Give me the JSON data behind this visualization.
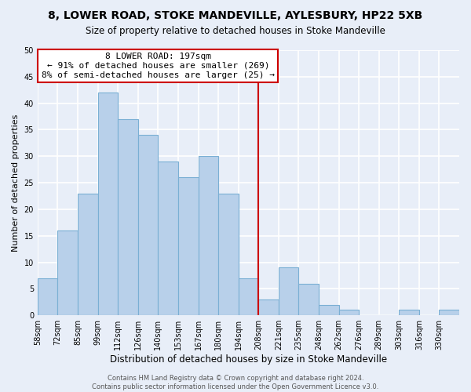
{
  "title": "8, LOWER ROAD, STOKE MANDEVILLE, AYLESBURY, HP22 5XB",
  "subtitle": "Size of property relative to detached houses in Stoke Mandeville",
  "xlabel": "Distribution of detached houses by size in Stoke Mandeville",
  "ylabel": "Number of detached properties",
  "footer_line1": "Contains HM Land Registry data © Crown copyright and database right 2024.",
  "footer_line2": "Contains public sector information licensed under the Open Government Licence v3.0.",
  "bin_labels": [
    "58sqm",
    "72sqm",
    "85sqm",
    "99sqm",
    "112sqm",
    "126sqm",
    "140sqm",
    "153sqm",
    "167sqm",
    "180sqm",
    "194sqm",
    "208sqm",
    "221sqm",
    "235sqm",
    "248sqm",
    "262sqm",
    "276sqm",
    "289sqm",
    "303sqm",
    "316sqm",
    "330sqm"
  ],
  "n_bins": 21,
  "bar_values": [
    7,
    16,
    23,
    42,
    37,
    34,
    29,
    26,
    30,
    23,
    7,
    3,
    9,
    6,
    2,
    1,
    0,
    0,
    1,
    0,
    1
  ],
  "bar_color": "#b8d0ea",
  "bar_edge_color": "#7aafd4",
  "reference_bin_index": 10,
  "reference_line_color": "#cc0000",
  "annotation_title": "8 LOWER ROAD: 197sqm",
  "annotation_line1": "← 91% of detached houses are smaller (269)",
  "annotation_line2": "8% of semi-detached houses are larger (25) →",
  "annotation_box_color": "#ffffff",
  "annotation_box_edge": "#cc0000",
  "ylim": [
    0,
    50
  ],
  "yticks": [
    0,
    5,
    10,
    15,
    20,
    25,
    30,
    35,
    40,
    45,
    50
  ],
  "bg_color": "#e8eef8",
  "grid_color": "#ffffff",
  "title_fontsize": 10,
  "subtitle_fontsize": 8.5,
  "tick_fontsize": 7,
  "ylabel_fontsize": 8,
  "xlabel_fontsize": 8.5
}
